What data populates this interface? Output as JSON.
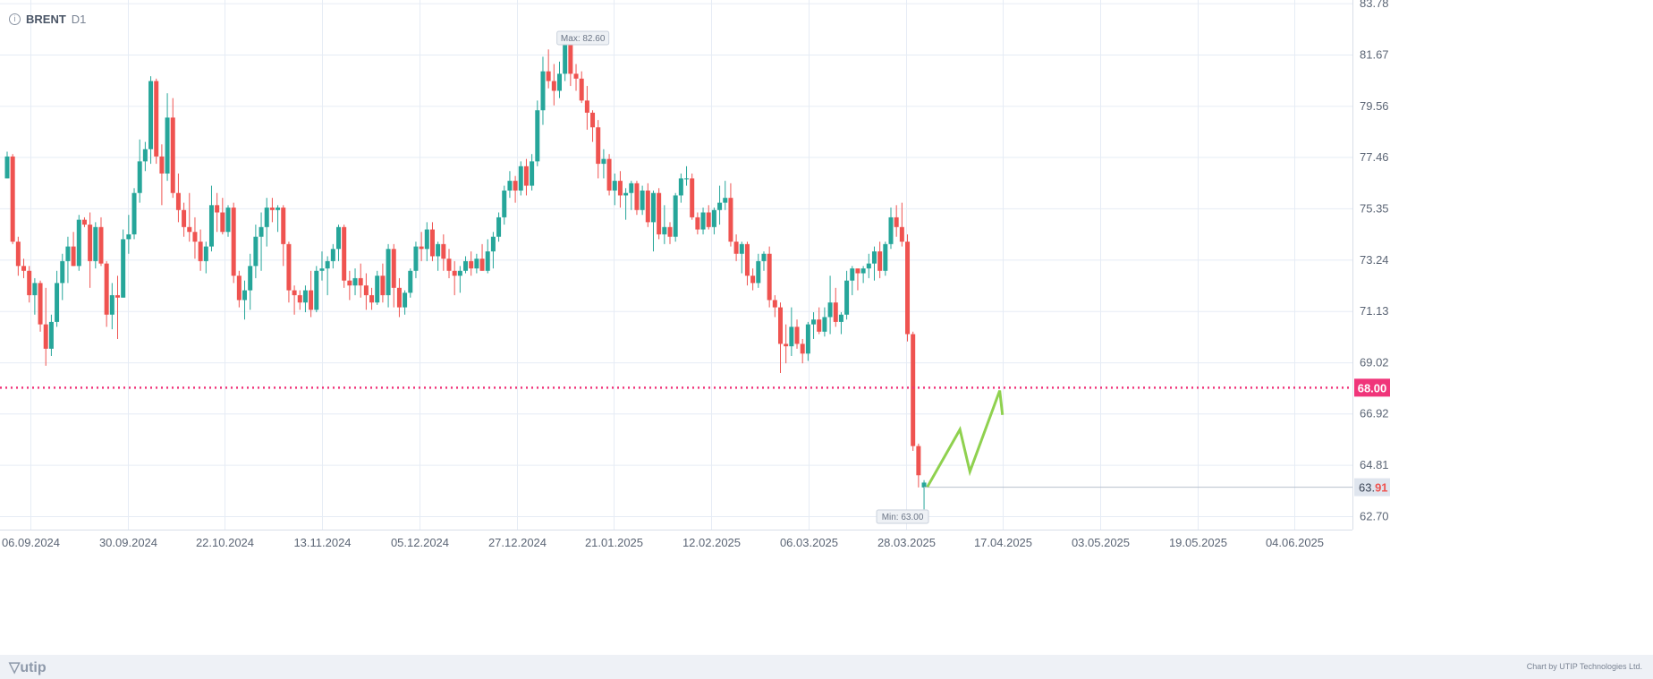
{
  "header": {
    "symbol": "BRENT",
    "timeframe": "D1",
    "info_glyph": "i"
  },
  "footer": {
    "brand": "utip",
    "credit": "Chart by UTIP Technologies Ltd."
  },
  "colors": {
    "up": "#26a69a",
    "down": "#ef5350",
    "level": "#f0357a",
    "arrow": "#8fd14f",
    "grid": "#e6ecf5"
  },
  "chart_data": {
    "type": "candlestick",
    "y_ticks": [
      "83.78",
      "81.67",
      "79.56",
      "77.46",
      "75.35",
      "73.24",
      "71.13",
      "69.02",
      "66.92",
      "64.81",
      "62.70"
    ],
    "ylim": [
      61.62,
      84.45
    ],
    "x_ticks": [
      "06.09.2024",
      "30.09.2024",
      "22.10.2024",
      "13.11.2024",
      "05.12.2024",
      "27.12.2024",
      "21.01.2025",
      "12.02.2025",
      "06.03.2025",
      "28.03.2025",
      "17.04.2025",
      "03.05.2025",
      "19.05.2025",
      "04.06.2025"
    ],
    "level": {
      "value": 68.0,
      "label": "68.00"
    },
    "last_price": {
      "value": 63.91,
      "label_main": "63.",
      "label_tail": "91"
    },
    "max_label": "Max: 82.60",
    "min_label": "Min: 63.00",
    "candles": [
      [
        0,
        76.6,
        77.7,
        76.6,
        77.5
      ],
      [
        1,
        77.5,
        77.6,
        73.9,
        74.0
      ],
      [
        2,
        74.0,
        74.2,
        72.6,
        73.0
      ],
      [
        3,
        73.0,
        73.3,
        72.5,
        72.8
      ],
      [
        4,
        72.8,
        73.0,
        71.5,
        71.8
      ],
      [
        5,
        71.8,
        72.5,
        71.0,
        72.3
      ],
      [
        6,
        72.3,
        72.4,
        70.3,
        70.6
      ],
      [
        7,
        70.6,
        72.1,
        68.9,
        69.6
      ],
      [
        8,
        69.6,
        71.0,
        69.3,
        70.7
      ],
      [
        9,
        70.7,
        72.8,
        70.5,
        72.3
      ],
      [
        10,
        72.3,
        73.5,
        71.6,
        73.2
      ],
      [
        11,
        73.2,
        74.2,
        72.3,
        73.8
      ],
      [
        12,
        73.8,
        74.4,
        73.0,
        73.0
      ],
      [
        13,
        73.0,
        75.1,
        72.8,
        74.9
      ],
      [
        14,
        74.9,
        75.0,
        74.6,
        74.7
      ],
      [
        15,
        74.7,
        75.2,
        72.1,
        73.2
      ],
      [
        16,
        73.2,
        74.8,
        72.9,
        74.6
      ],
      [
        17,
        74.6,
        75.0,
        73.0,
        73.1
      ],
      [
        18,
        73.1,
        73.2,
        70.5,
        71.0
      ],
      [
        19,
        71.0,
        72.3,
        70.4,
        71.8
      ],
      [
        20,
        71.8,
        72.6,
        70.0,
        71.7
      ],
      [
        21,
        71.7,
        74.5,
        71.7,
        74.1
      ],
      [
        22,
        74.1,
        75.1,
        73.5,
        74.3
      ],
      [
        23,
        74.3,
        76.2,
        74.1,
        76.0
      ],
      [
        24,
        76.0,
        78.2,
        75.6,
        77.3
      ],
      [
        25,
        77.3,
        78.1,
        76.9,
        77.8
      ],
      [
        26,
        77.8,
        80.8,
        77.2,
        80.6
      ],
      [
        27,
        80.6,
        80.7,
        77.2,
        77.5
      ],
      [
        28,
        77.5,
        78.0,
        75.5,
        76.8
      ],
      [
        29,
        76.8,
        80.1,
        76.5,
        79.1
      ],
      [
        30,
        79.1,
        79.9,
        75.8,
        76.0
      ],
      [
        31,
        76.0,
        76.8,
        74.8,
        75.3
      ],
      [
        32,
        75.3,
        75.6,
        74.2,
        74.6
      ],
      [
        33,
        74.6,
        76.0,
        74.0,
        74.4
      ],
      [
        34,
        74.4,
        75.0,
        73.3,
        74.0
      ],
      [
        35,
        74.0,
        74.5,
        72.8,
        73.2
      ],
      [
        36,
        73.2,
        74.0,
        72.7,
        73.8
      ],
      [
        37,
        73.8,
        76.3,
        73.6,
        75.5
      ],
      [
        38,
        75.5,
        76.0,
        74.4,
        75.2
      ],
      [
        39,
        75.2,
        75.8,
        74.3,
        74.4
      ],
      [
        40,
        74.4,
        75.5,
        74.2,
        75.4
      ],
      [
        41,
        75.4,
        75.6,
        72.3,
        72.6
      ],
      [
        42,
        72.6,
        72.8,
        71.3,
        71.6
      ],
      [
        43,
        71.6,
        72.4,
        70.8,
        72.0
      ],
      [
        44,
        72.0,
        73.5,
        71.2,
        73.0
      ],
      [
        45,
        73.0,
        74.7,
        72.5,
        74.2
      ],
      [
        46,
        74.2,
        75.2,
        72.8,
        74.6
      ],
      [
        47,
        74.6,
        75.8,
        73.8,
        75.4
      ],
      [
        48,
        75.4,
        75.8,
        74.8,
        75.3
      ],
      [
        49,
        75.3,
        75.5,
        74.4,
        75.4
      ],
      [
        50,
        75.4,
        75.5,
        73.0,
        73.9
      ],
      [
        51,
        73.9,
        74.0,
        71.5,
        72.0
      ],
      [
        52,
        72.0,
        72.2,
        71.0,
        71.8
      ],
      [
        53,
        71.8,
        72.0,
        71.2,
        71.5
      ],
      [
        54,
        71.5,
        72.2,
        71.1,
        72.0
      ],
      [
        55,
        72.0,
        72.8,
        70.9,
        71.2
      ],
      [
        56,
        71.2,
        73.0,
        71.1,
        72.8
      ],
      [
        57,
        72.8,
        73.6,
        72.4,
        72.9
      ],
      [
        58,
        72.9,
        73.4,
        71.8,
        73.2
      ],
      [
        59,
        73.2,
        73.9,
        72.9,
        73.7
      ],
      [
        60,
        73.7,
        74.7,
        73.2,
        74.6
      ],
      [
        61,
        74.6,
        74.7,
        72.1,
        72.4
      ],
      [
        62,
        72.4,
        72.8,
        71.6,
        72.2
      ],
      [
        63,
        72.2,
        72.9,
        71.8,
        72.5
      ],
      [
        64,
        72.5,
        73.1,
        71.7,
        72.2
      ],
      [
        65,
        72.2,
        72.7,
        71.2,
        71.8
      ],
      [
        66,
        71.8,
        72.1,
        71.2,
        71.5
      ],
      [
        67,
        71.5,
        72.8,
        71.4,
        72.6
      ],
      [
        68,
        72.6,
        73.1,
        71.5,
        71.8
      ],
      [
        69,
        71.8,
        73.9,
        71.3,
        73.7
      ],
      [
        70,
        73.7,
        73.9,
        71.3,
        72.1
      ],
      [
        71,
        72.1,
        72.5,
        70.9,
        71.3
      ],
      [
        72,
        71.3,
        72.0,
        71.0,
        71.9
      ],
      [
        73,
        71.9,
        72.9,
        71.7,
        72.8
      ],
      [
        74,
        72.8,
        74.0,
        72.5,
        73.8
      ],
      [
        75,
        73.8,
        74.4,
        73.2,
        73.7
      ],
      [
        76,
        73.7,
        74.8,
        73.2,
        74.5
      ],
      [
        77,
        74.5,
        74.8,
        73.2,
        73.4
      ],
      [
        78,
        73.4,
        74.0,
        72.8,
        73.9
      ],
      [
        79,
        73.9,
        74.3,
        72.8,
        73.3
      ],
      [
        80,
        73.3,
        73.7,
        72.5,
        72.8
      ],
      [
        81,
        72.8,
        73.2,
        71.8,
        72.6
      ],
      [
        82,
        72.6,
        73.0,
        71.9,
        72.8
      ],
      [
        83,
        72.8,
        73.4,
        72.7,
        73.2
      ],
      [
        84,
        73.2,
        73.6,
        72.6,
        72.9
      ],
      [
        85,
        72.9,
        73.5,
        72.7,
        73.3
      ],
      [
        86,
        73.3,
        73.9,
        72.8,
        72.8
      ],
      [
        87,
        72.8,
        74.1,
        72.7,
        73.6
      ],
      [
        88,
        73.6,
        74.4,
        72.9,
        74.2
      ],
      [
        89,
        74.2,
        75.2,
        74.0,
        75.0
      ],
      [
        90,
        75.0,
        76.3,
        74.7,
        76.1
      ],
      [
        91,
        76.1,
        76.9,
        75.8,
        76.5
      ],
      [
        92,
        76.5,
        76.7,
        75.6,
        76.1
      ],
      [
        93,
        76.1,
        77.3,
        75.9,
        77.1
      ],
      [
        94,
        77.1,
        77.4,
        75.9,
        76.3
      ],
      [
        95,
        76.3,
        77.6,
        76.1,
        77.3
      ],
      [
        96,
        77.3,
        79.8,
        77.1,
        79.4
      ],
      [
        97,
        79.4,
        81.6,
        78.8,
        81.0
      ],
      [
        98,
        81.0,
        81.9,
        80.3,
        80.6
      ],
      [
        99,
        80.6,
        81.3,
        79.6,
        80.2
      ],
      [
        100,
        80.2,
        81.4,
        79.9,
        80.9
      ],
      [
        101,
        80.9,
        82.5,
        80.6,
        82.4
      ],
      [
        102,
        82.4,
        82.6,
        80.4,
        80.9
      ],
      [
        103,
        80.9,
        81.3,
        80.2,
        80.7
      ],
      [
        104,
        80.7,
        81.0,
        79.7,
        79.8
      ],
      [
        105,
        79.8,
        80.4,
        78.6,
        79.3
      ],
      [
        106,
        79.3,
        79.4,
        78.1,
        78.7
      ],
      [
        107,
        78.7,
        79.0,
        76.6,
        77.2
      ],
      [
        108,
        77.2,
        77.8,
        76.6,
        77.4
      ],
      [
        109,
        77.4,
        77.6,
        75.9,
        76.1
      ],
      [
        110,
        76.1,
        76.8,
        75.5,
        76.5
      ],
      [
        111,
        76.5,
        76.9,
        75.4,
        75.9
      ],
      [
        112,
        75.9,
        76.2,
        74.9,
        76.0
      ],
      [
        113,
        76.0,
        76.5,
        75.3,
        76.4
      ],
      [
        114,
        76.4,
        76.5,
        75.1,
        75.3
      ],
      [
        115,
        75.3,
        76.3,
        75.1,
        76.1
      ],
      [
        116,
        76.1,
        76.4,
        74.6,
        74.8
      ],
      [
        117,
        74.8,
        76.1,
        73.6,
        76.0
      ],
      [
        118,
        76.0,
        76.2,
        74.1,
        74.3
      ],
      [
        119,
        74.3,
        75.5,
        73.9,
        74.6
      ],
      [
        120,
        74.6,
        74.8,
        73.9,
        74.2
      ],
      [
        121,
        74.2,
        76.0,
        74.0,
        75.9
      ],
      [
        122,
        75.9,
        76.8,
        75.6,
        76.6
      ],
      [
        123,
        76.6,
        77.1,
        76.3,
        76.6
      ],
      [
        124,
        76.6,
        76.8,
        74.9,
        75.0
      ],
      [
        125,
        75.0,
        75.2,
        74.3,
        74.5
      ],
      [
        126,
        74.5,
        75.4,
        74.3,
        75.2
      ],
      [
        127,
        75.2,
        75.5,
        74.5,
        74.6
      ],
      [
        128,
        74.6,
        75.4,
        74.3,
        75.3
      ],
      [
        129,
        75.3,
        76.3,
        74.7,
        75.6
      ],
      [
        130,
        75.6,
        76.5,
        75.3,
        75.8
      ],
      [
        131,
        75.8,
        76.4,
        73.8,
        74.0
      ],
      [
        132,
        74.0,
        74.3,
        73.2,
        73.5
      ],
      [
        133,
        73.5,
        74.0,
        72.7,
        73.9
      ],
      [
        134,
        73.9,
        74.0,
        72.2,
        72.6
      ],
      [
        135,
        72.6,
        72.9,
        72.0,
        72.3
      ],
      [
        136,
        72.3,
        73.5,
        72.1,
        73.2
      ],
      [
        137,
        73.2,
        73.6,
        72.8,
        73.5
      ],
      [
        138,
        73.5,
        73.8,
        71.3,
        71.6
      ],
      [
        139,
        71.6,
        71.8,
        70.9,
        71.3
      ],
      [
        140,
        71.3,
        71.5,
        68.6,
        69.8
      ],
      [
        141,
        69.8,
        70.6,
        69.0,
        69.7
      ],
      [
        142,
        69.7,
        71.3,
        69.3,
        70.5
      ],
      [
        143,
        70.5,
        70.8,
        69.6,
        69.8
      ],
      [
        144,
        69.8,
        70.0,
        69.0,
        69.4
      ],
      [
        145,
        69.4,
        70.7,
        69.1,
        70.6
      ],
      [
        146,
        70.6,
        71.1,
        70.0,
        70.8
      ],
      [
        147,
        70.8,
        71.3,
        70.2,
        70.3
      ],
      [
        148,
        70.3,
        71.3,
        70.1,
        70.9
      ],
      [
        149,
        70.9,
        72.6,
        70.2,
        71.5
      ],
      [
        150,
        71.5,
        72.1,
        70.5,
        70.7
      ],
      [
        151,
        70.7,
        71.1,
        70.2,
        71.0
      ],
      [
        152,
        71.0,
        72.8,
        70.8,
        72.4
      ],
      [
        153,
        72.4,
        73.0,
        71.8,
        72.9
      ],
      [
        154,
        72.9,
        72.9,
        72.0,
        72.7
      ],
      [
        155,
        72.7,
        73.0,
        72.3,
        72.9
      ],
      [
        156,
        72.9,
        73.5,
        72.5,
        73.1
      ],
      [
        157,
        73.1,
        73.8,
        72.4,
        73.6
      ],
      [
        158,
        73.6,
        74.0,
        72.5,
        72.8
      ],
      [
        159,
        72.8,
        74.0,
        72.6,
        73.9
      ],
      [
        160,
        73.9,
        75.4,
        73.7,
        75.0
      ],
      [
        161,
        75.0,
        75.5,
        74.2,
        74.6
      ],
      [
        162,
        74.6,
        75.6,
        73.8,
        74.0
      ],
      [
        163,
        74.0,
        74.3,
        69.9,
        70.2
      ],
      [
        164,
        70.2,
        70.3,
        65.4,
        65.6
      ],
      [
        165,
        65.6,
        65.7,
        63.9,
        64.4
      ],
      [
        166,
        63.9,
        64.2,
        63.0,
        64.1
      ]
    ],
    "arrow": [
      [
        166.6,
        63.92
      ],
      [
        172.5,
        66.28
      ],
      [
        174.3,
        64.55
      ],
      [
        179.7,
        67.88
      ],
      [
        180.2,
        66.88
      ]
    ]
  }
}
